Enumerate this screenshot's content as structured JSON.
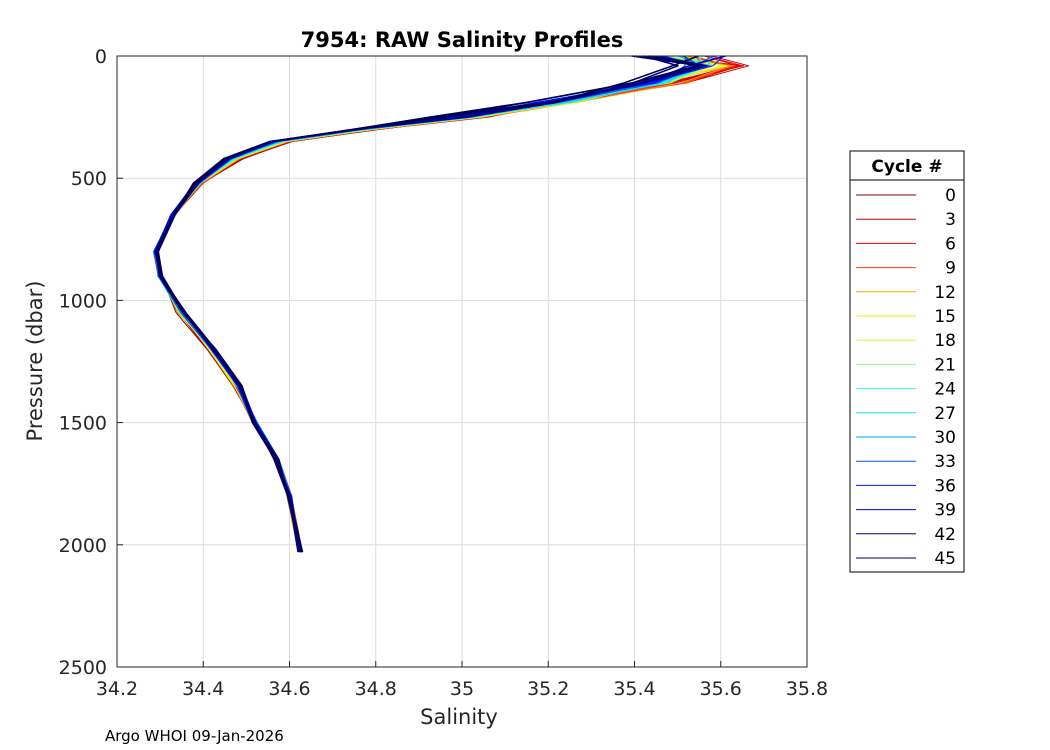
{
  "chart_data": {
    "type": "line",
    "title": "7954: RAW Salinity Profiles",
    "xlabel": "Salinity",
    "ylabel": "Pressure (dbar)",
    "xlim": [
      34.2,
      35.8
    ],
    "ylim": [
      0,
      2500
    ],
    "y_reversed": true,
    "grid": true,
    "xticks": [
      "34.2",
      "34.4",
      "34.6",
      "34.8",
      "35",
      "35.2",
      "35.4",
      "35.6",
      "35.8"
    ],
    "yticks": [
      "0",
      "500",
      "1000",
      "1500",
      "2000",
      "2500"
    ],
    "legend": {
      "title": "Cycle #",
      "placement": "outside-right",
      "entries": [
        {
          "label": "0",
          "color": "#800000"
        },
        {
          "label": "3",
          "color": "#c80000"
        },
        {
          "label": "6",
          "color": "#f00000"
        },
        {
          "label": "9",
          "color": "#ff4000"
        },
        {
          "label": "12",
          "color": "#ff9a00"
        },
        {
          "label": "15",
          "color": "#ffe400"
        },
        {
          "label": "18",
          "color": "#c8ff37"
        },
        {
          "label": "21",
          "color": "#80ff80"
        },
        {
          "label": "24",
          "color": "#37ffc8"
        },
        {
          "label": "27",
          "color": "#00e4ff"
        },
        {
          "label": "30",
          "color": "#009aff"
        },
        {
          "label": "33",
          "color": "#0050ff"
        },
        {
          "label": "36",
          "color": "#0010ff"
        },
        {
          "label": "39",
          "color": "#0000c8"
        },
        {
          "label": "42",
          "color": "#000080"
        },
        {
          "label": "45",
          "color": "#000050"
        }
      ]
    },
    "base_profile": [
      [
        35.5,
        0
      ],
      [
        35.58,
        40
      ],
      [
        35.45,
        110
      ],
      [
        35.22,
        190
      ],
      [
        35.0,
        250
      ],
      [
        34.78,
        300
      ],
      [
        34.58,
        350
      ],
      [
        34.47,
        420
      ],
      [
        34.39,
        520
      ],
      [
        34.33,
        650
      ],
      [
        34.29,
        800
      ],
      [
        34.3,
        900
      ],
      [
        34.35,
        1050
      ],
      [
        34.42,
        1200
      ],
      [
        34.48,
        1350
      ],
      [
        34.52,
        1500
      ],
      [
        34.57,
        1650
      ],
      [
        34.6,
        1800
      ],
      [
        34.625,
        2030
      ]
    ],
    "footer": "Argo WHOI 09-Jan-2026"
  }
}
